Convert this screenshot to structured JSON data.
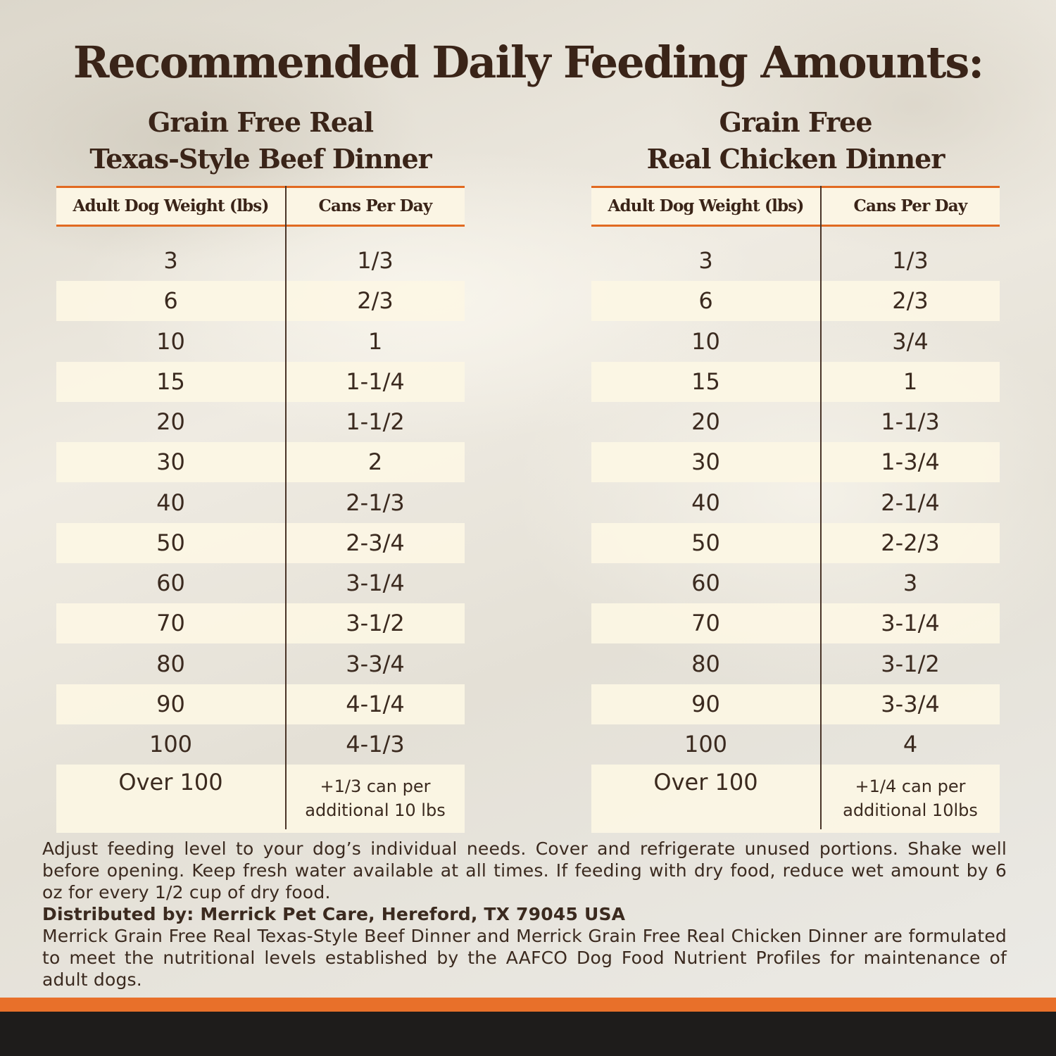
{
  "title": "Recommended Daily Feeding Amounts:",
  "products": [
    {
      "title_line1": "Grain Free Real",
      "title_line2": "Texas-Style Beef Dinner",
      "header_weight": "Adult Dog Weight (lbs)",
      "header_cans": "Cans Per Day",
      "rows": [
        {
          "weight": "3",
          "cans": "1/3"
        },
        {
          "weight": "6",
          "cans": "2/3"
        },
        {
          "weight": "10",
          "cans": "1"
        },
        {
          "weight": "15",
          "cans": "1-1/4"
        },
        {
          "weight": "20",
          "cans": "1-1/2"
        },
        {
          "weight": "30",
          "cans": "2"
        },
        {
          "weight": "40",
          "cans": "2-1/3"
        },
        {
          "weight": "50",
          "cans": "2-3/4"
        },
        {
          "weight": "60",
          "cans": "3-1/4"
        },
        {
          "weight": "70",
          "cans": "3-1/2"
        },
        {
          "weight": "80",
          "cans": "3-3/4"
        },
        {
          "weight": "90",
          "cans": "4-1/4"
        },
        {
          "weight": "100",
          "cans": "4-1/3"
        }
      ],
      "over": {
        "weight": "Over 100",
        "cans_line1": "+1/3 can per",
        "cans_line2": "additional 10 lbs"
      }
    },
    {
      "title_line1": "Grain Free",
      "title_line2": "Real Chicken Dinner",
      "header_weight": "Adult Dog Weight (lbs)",
      "header_cans": "Cans Per Day",
      "rows": [
        {
          "weight": "3",
          "cans": "1/3"
        },
        {
          "weight": "6",
          "cans": "2/3"
        },
        {
          "weight": "10",
          "cans": "3/4"
        },
        {
          "weight": "15",
          "cans": "1"
        },
        {
          "weight": "20",
          "cans": "1-1/3"
        },
        {
          "weight": "30",
          "cans": "1-3/4"
        },
        {
          "weight": "40",
          "cans": "2-1/4"
        },
        {
          "weight": "50",
          "cans": "2-2/3"
        },
        {
          "weight": "60",
          "cans": "3"
        },
        {
          "weight": "70",
          "cans": "3-1/4"
        },
        {
          "weight": "80",
          "cans": "3-1/2"
        },
        {
          "weight": "90",
          "cans": "3-3/4"
        },
        {
          "weight": "100",
          "cans": "4"
        }
      ],
      "over": {
        "weight": "Over 100",
        "cans_line1": "+1/4 can per",
        "cans_line2": "additional 10lbs"
      }
    }
  ],
  "footnote": {
    "instructions": "Adjust feeding level to your dog’s individual needs. Cover and refrigerate unused portions. Shake well before opening. Keep fresh water available at all times. If feeding with dry food, reduce wet amount by 6 oz for every 1/2 cup of dry food.",
    "distributed_by": "Distributed by: Merrick Pet Care, Hereford, TX 79045 USA",
    "aafco": "Merrick Grain Free Real Texas-Style Beef Dinner and Merrick Grain Free Real Chicken Dinner are formulated to meet the nutritional levels established by the AAFCO Dog Food Nutrient Profiles for maintenance of adult dogs."
  },
  "colors": {
    "accent": "#e16a21",
    "text": "#3a2418",
    "band_dark": "#1e1c1b"
  }
}
